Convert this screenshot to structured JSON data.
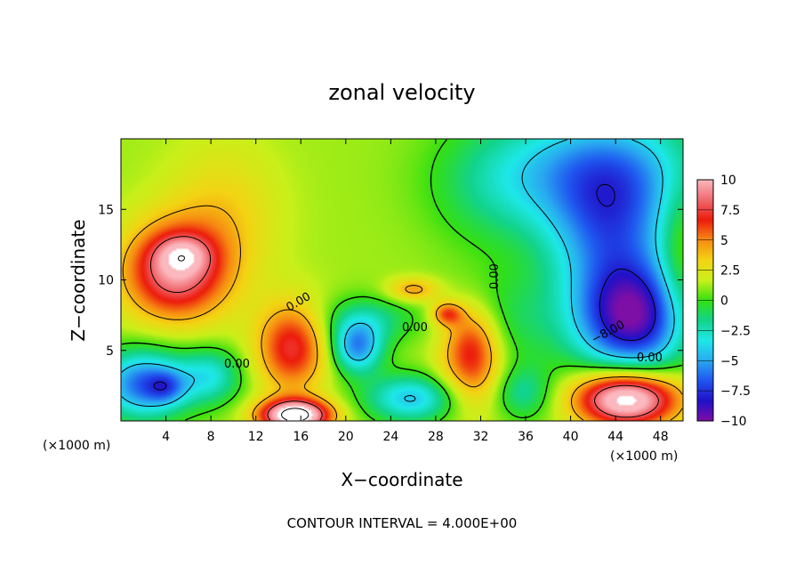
{
  "chart_data": {
    "type": "heatmap",
    "title": "zonal velocity",
    "xlabel": "X−coordinate",
    "ylabel": "Z−coordinate",
    "x_units_left": "(×1000 m)",
    "x_units_right": "(×1000 m)",
    "xlim": [
      0,
      50
    ],
    "ylim": [
      0,
      20
    ],
    "x_ticks": [
      4,
      8,
      12,
      16,
      20,
      24,
      28,
      32,
      36,
      40,
      44,
      48
    ],
    "y_ticks": [
      5,
      10,
      15
    ],
    "colorbar": {
      "vmin": -10,
      "vmax": 10,
      "ticks": [
        "10",
        "7.5",
        "5",
        "2.5",
        "0",
        "−2.5",
        "−5",
        "−7.5",
        "−10"
      ],
      "palette": [
        "#7d0ea6",
        "#2010c8",
        "#1f55ef",
        "#29a9f0",
        "#1ee8e8",
        "#12d38a",
        "#35e010",
        "#c9f01a",
        "#f3d413",
        "#f78a12",
        "#ec1b0d",
        "#f0696f",
        "#fbb9bf"
      ]
    },
    "contour_labels": [
      "0.00",
      "0.00",
      "0.00",
      "−8.00",
      "0.00",
      "0.00"
    ],
    "background_value": 1.2,
    "features": [
      {
        "x": 4.8,
        "z": 10.6,
        "sx": 3.2,
        "sz": 2.4,
        "amp": 7.8
      },
      {
        "x": 5.5,
        "z": 11.8,
        "sx": 1.6,
        "sz": 0.9,
        "amp": 3.0
      },
      {
        "x": 2.0,
        "z": 2.6,
        "sx": 2.8,
        "sz": 1.7,
        "amp": -7.5
      },
      {
        "x": 4.0,
        "z": 2.4,
        "sx": 1.2,
        "sz": 0.8,
        "amp": -3.0
      },
      {
        "x": 8.0,
        "z": 3.2,
        "sx": 2.0,
        "sz": 1.4,
        "amp": -4.0
      },
      {
        "x": 15.2,
        "z": 5.2,
        "sx": 2.2,
        "sz": 2.2,
        "amp": 6.0
      },
      {
        "x": 15.5,
        "z": 0.4,
        "sx": 2.2,
        "sz": 0.8,
        "amp": 12.0
      },
      {
        "x": 21.0,
        "z": 5.2,
        "sx": 1.6,
        "sz": 1.3,
        "amp": -6.5
      },
      {
        "x": 22.0,
        "z": 7.2,
        "sx": 3.0,
        "sz": 1.2,
        "amp": -2.8
      },
      {
        "x": 26.0,
        "z": 9.3,
        "sx": 1.6,
        "sz": 0.6,
        "amp": 3.5
      },
      {
        "x": 29.0,
        "z": 7.6,
        "sx": 1.0,
        "sz": 0.6,
        "amp": 4.5
      },
      {
        "x": 26.0,
        "z": 1.6,
        "sx": 3.0,
        "sz": 1.2,
        "amp": -5.5
      },
      {
        "x": 31.2,
        "z": 5.4,
        "sx": 1.8,
        "sz": 2.0,
        "amp": 5.6
      },
      {
        "x": 31.5,
        "z": 2.4,
        "sx": 2.6,
        "sz": 1.8,
        "amp": 2.5
      },
      {
        "x": 35.5,
        "z": 2.0,
        "sx": 2.0,
        "sz": 1.4,
        "amp": -3.5
      },
      {
        "x": 34.5,
        "z": 7.0,
        "sx": 3.5,
        "sz": 2.5,
        "amp": -2.0
      },
      {
        "x": 45.0,
        "z": 1.6,
        "sx": 3.2,
        "sz": 1.4,
        "amp": 11.5
      },
      {
        "x": 45.5,
        "z": 7.2,
        "sx": 3.6,
        "sz": 2.8,
        "amp": -10.0
      },
      {
        "x": 43.5,
        "z": 13.5,
        "sx": 4.0,
        "sz": 3.8,
        "amp": -6.2
      },
      {
        "x": 45.0,
        "z": 18.0,
        "sx": 6.0,
        "sz": 3.0,
        "amp": -3.5
      },
      {
        "x": 38.0,
        "z": 18.0,
        "sx": 6.0,
        "sz": 3.0,
        "amp": -2.8
      },
      {
        "x": 9.0,
        "z": 14.5,
        "sx": 3.5,
        "sz": 3.5,
        "amp": 2.2
      },
      {
        "x": 33.0,
        "z": 16.0,
        "sx": 4.0,
        "sz": 3.0,
        "amp": -1.5
      },
      {
        "x": 49.5,
        "z": 11.0,
        "sx": 1.2,
        "sz": 4.0,
        "amp": 2.0
      }
    ]
  },
  "footer": {
    "contour_interval": "CONTOUR INTERVAL = 4.000E+00"
  }
}
